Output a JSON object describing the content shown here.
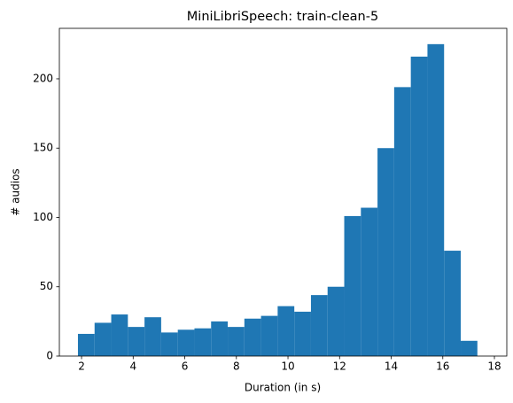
{
  "chart_data": {
    "type": "histogram",
    "title": "MiniLibriSpeech: train-clean-5",
    "x_label": "Duration (in s)",
    "y_label": "# audios",
    "bins": [
      1.86,
      2.505,
      3.15,
      3.795,
      4.44,
      5.085,
      5.73,
      6.375,
      7.02,
      7.665,
      8.31,
      8.955,
      9.6,
      10.245,
      10.89,
      11.535,
      12.18,
      12.825,
      13.47,
      14.115,
      14.76,
      15.405,
      16.05,
      16.695,
      17.34
    ],
    "values": [
      16,
      24,
      30,
      21,
      28,
      17,
      19,
      20,
      25,
      21,
      27,
      29,
      36,
      32,
      44,
      50,
      101,
      107,
      150,
      194,
      216,
      225,
      76,
      11
    ],
    "color": "#1f77b4",
    "xlim": [
      1.14,
      18.48
    ],
    "xticks": [
      2,
      4,
      6,
      8,
      10,
      12,
      14,
      16,
      18
    ],
    "ylim": [
      0,
      236.4
    ],
    "yticks": [
      0,
      50,
      100,
      150,
      200
    ]
  }
}
